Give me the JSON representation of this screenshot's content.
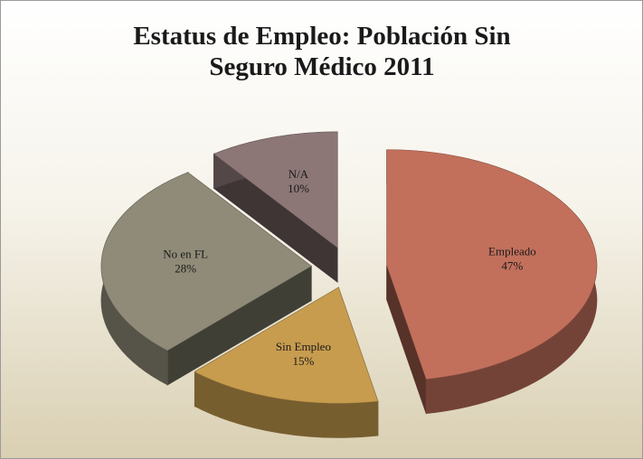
{
  "chart_data": {
    "type": "pie3d",
    "title": "Estatus de Empleo: Población Sin Seguro Médico 2011",
    "categories": [
      "Empleado",
      "Sin Empleo",
      "No en FL",
      "N/A"
    ],
    "values": [
      47,
      15,
      28,
      10
    ],
    "value_labels": [
      "47%",
      "15%",
      "28%",
      "10%"
    ],
    "colors": [
      "#c2705c",
      "#c79c4e",
      "#8f8b78",
      "#8c7676"
    ]
  }
}
